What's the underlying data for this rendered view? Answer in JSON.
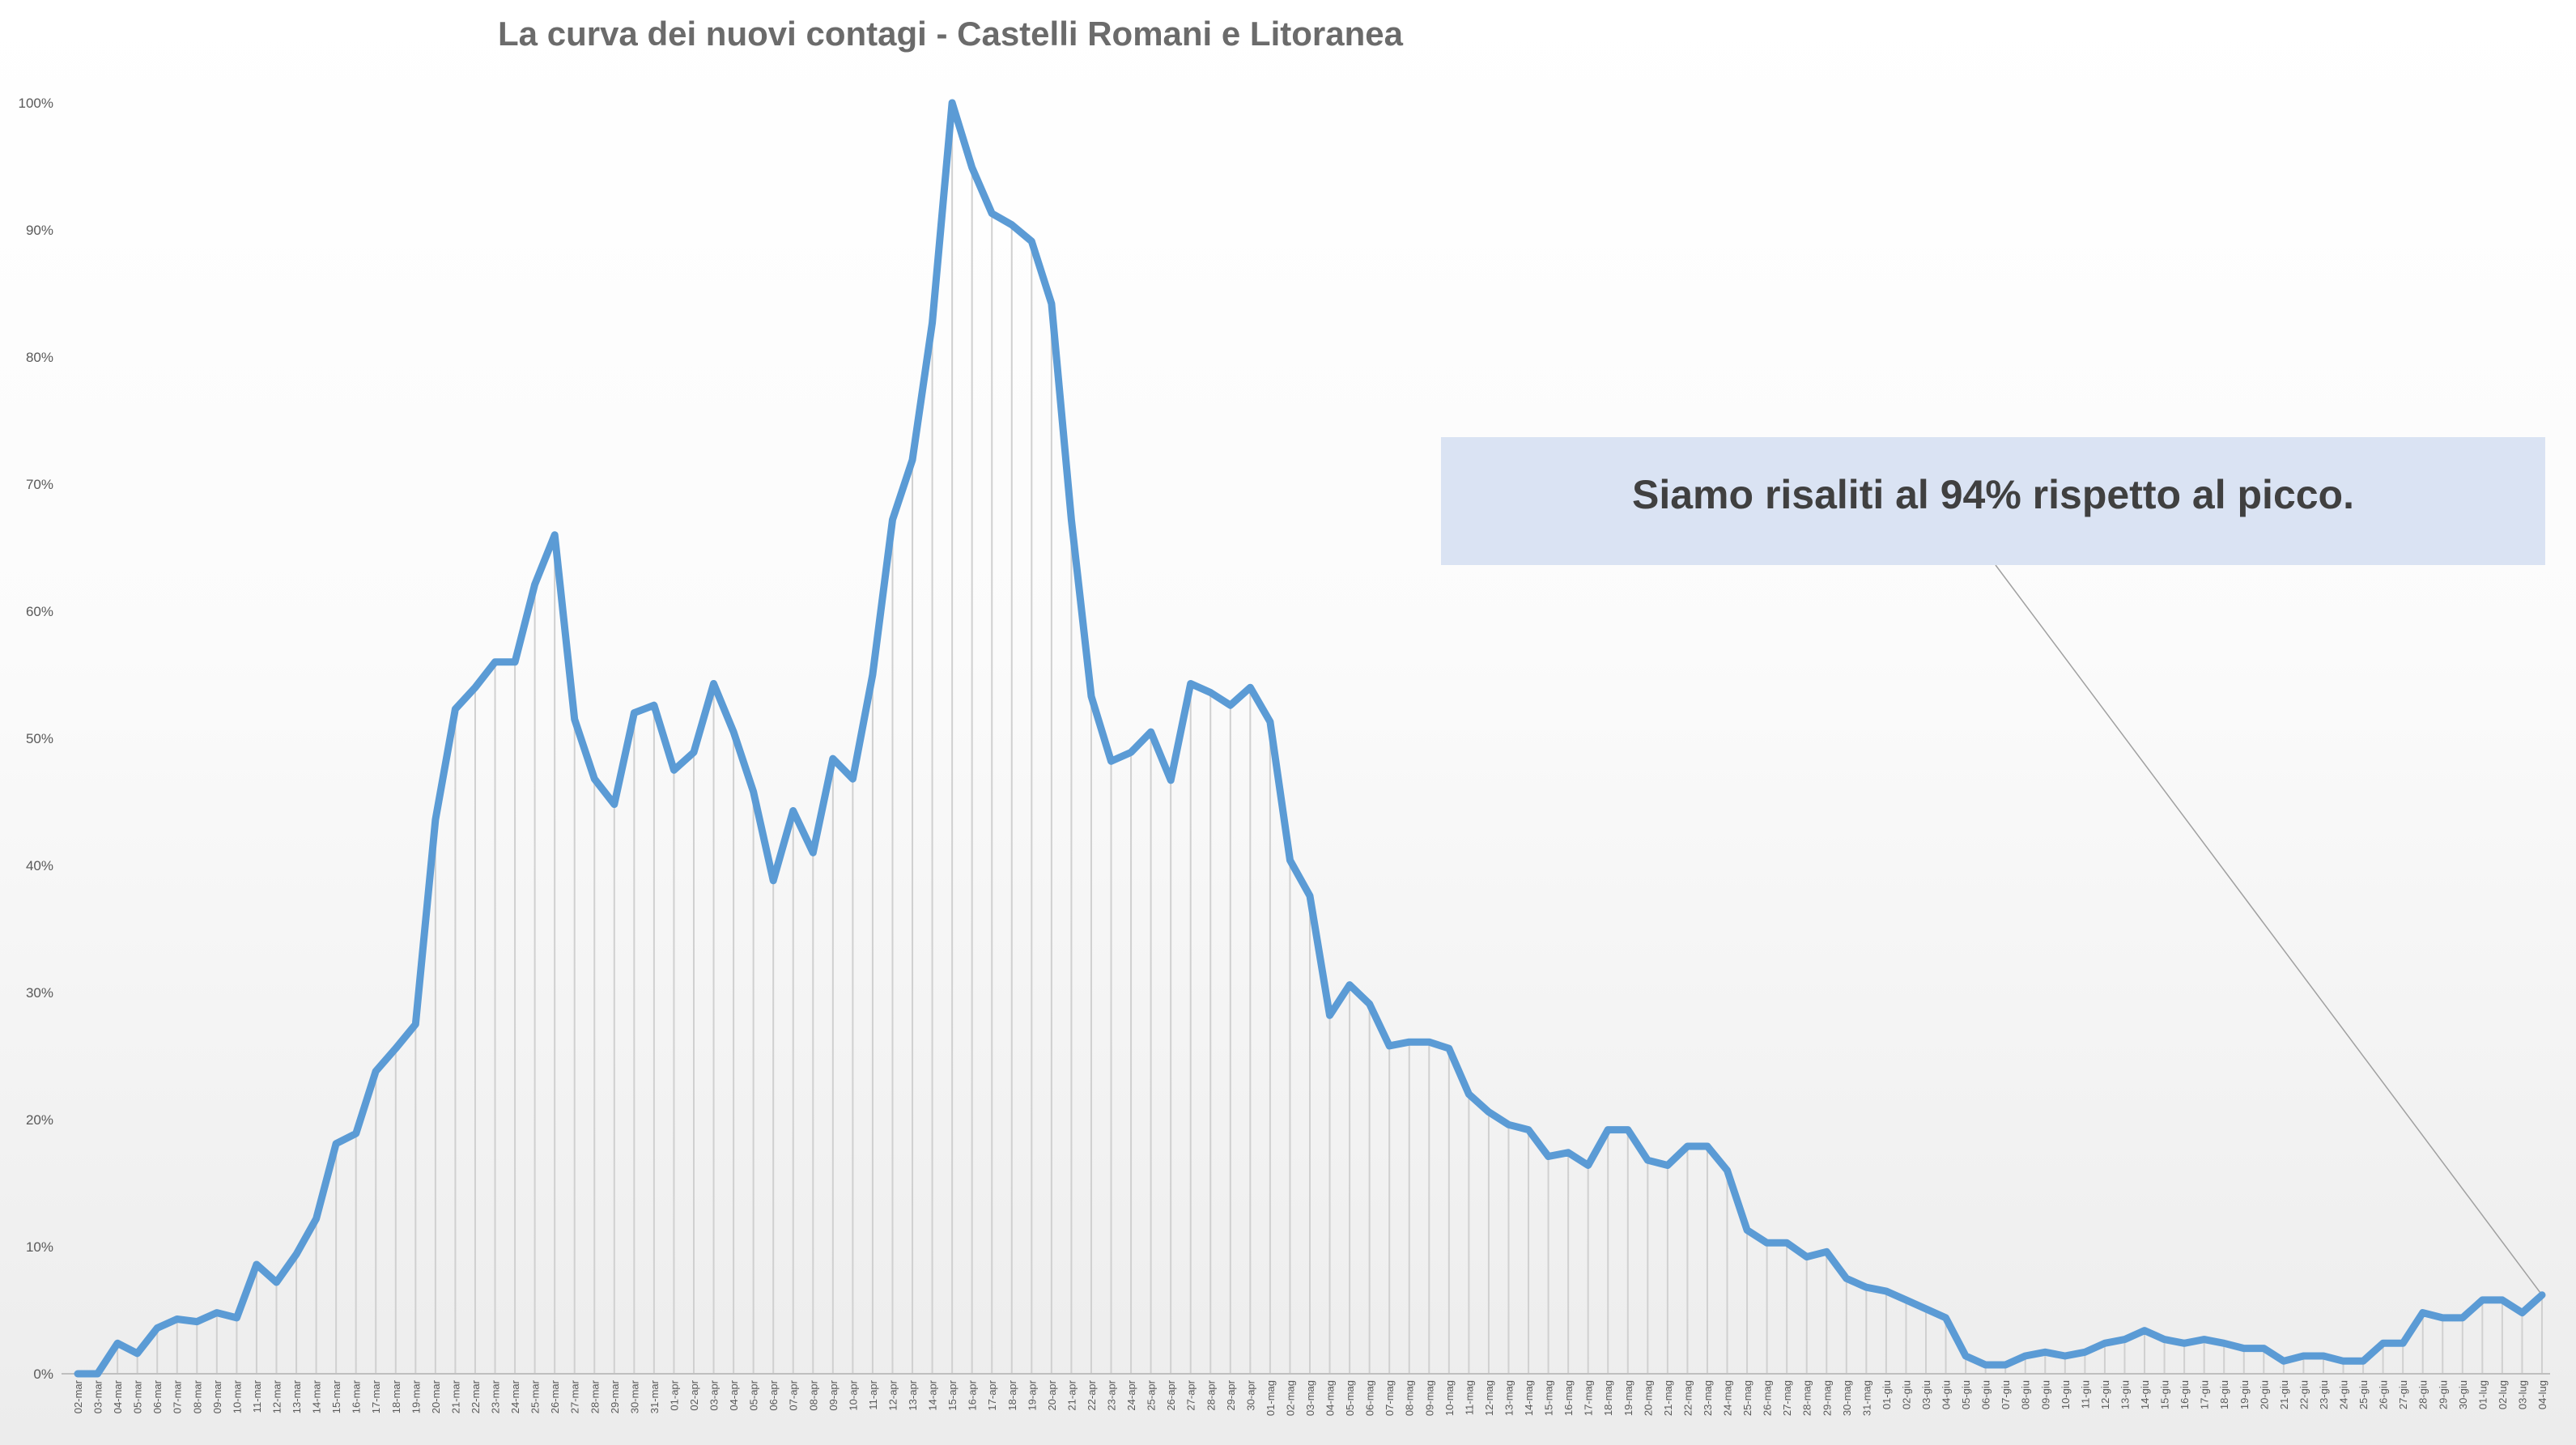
{
  "chart_data": {
    "type": "line",
    "title": "La curva dei nuovi contagi - Castelli Romani e Litoranea",
    "ylim": [
      0,
      100
    ],
    "y_ticks": [
      "0%",
      "10%",
      "20%",
      "30%",
      "40%",
      "50%",
      "60%",
      "70%",
      "80%",
      "90%",
      "100%"
    ],
    "grid": "vertical drop lines per day",
    "categories": [
      "02-mar",
      "03-mar",
      "04-mar",
      "05-mar",
      "06-mar",
      "07-mar",
      "08-mar",
      "09-mar",
      "10-mar",
      "11-mar",
      "12-mar",
      "13-mar",
      "14-mar",
      "15-mar",
      "16-mar",
      "17-mar",
      "18-mar",
      "19-mar",
      "20-mar",
      "21-mar",
      "22-mar",
      "23-mar",
      "24-mar",
      "25-mar",
      "26-mar",
      "27-mar",
      "28-mar",
      "29-mar",
      "30-mar",
      "31-mar",
      "01-apr",
      "02-apr",
      "03-apr",
      "04-apr",
      "05-apr",
      "06-apr",
      "07-apr",
      "08-apr",
      "09-apr",
      "10-apr",
      "11-apr",
      "12-apr",
      "13-apr",
      "14-apr",
      "15-apr",
      "16-apr",
      "17-apr",
      "18-apr",
      "19-apr",
      "20-apr",
      "21-apr",
      "22-apr",
      "23-apr",
      "24-apr",
      "25-apr",
      "26-apr",
      "27-apr",
      "28-apr",
      "29-apr",
      "30-apr",
      "01-mag",
      "02-mag",
      "03-mag",
      "04-mag",
      "05-mag",
      "06-mag",
      "07-mag",
      "08-mag",
      "09-mag",
      "10-mag",
      "11-mag",
      "12-mag",
      "13-mag",
      "14-mag",
      "15-mag",
      "16-mag",
      "17-mag",
      "18-mag",
      "19-mag",
      "20-mag",
      "21-mag",
      "22-mag",
      "23-mag",
      "24-mag",
      "25-mag",
      "26-mag",
      "27-mag",
      "28-mag",
      "29-mag",
      "30-mag",
      "31-mag",
      "01-giu",
      "02-giu",
      "03-giu",
      "04-giu",
      "05-giu",
      "06-giu",
      "07-giu",
      "08-giu",
      "09-giu",
      "10-giu",
      "11-giu",
      "12-giu",
      "13-giu",
      "14-giu",
      "15-giu",
      "16-giu",
      "17-giu",
      "18-giu",
      "19-giu",
      "20-giu",
      "21-giu",
      "22-giu",
      "23-giu",
      "24-giu",
      "25-giu",
      "26-giu",
      "27-giu",
      "28-giu",
      "29-giu",
      "30-giu",
      "01-lug",
      "02-lug",
      "03-lug",
      "04-lug"
    ],
    "values": [
      0,
      0,
      2.4,
      1.6,
      3.6,
      4.3,
      4.1,
      4.8,
      4.4,
      8.6,
      7.2,
      9.4,
      12.2,
      18.1,
      18.9,
      23.8,
      25.6,
      27.5,
      43.6,
      52.3,
      54.0,
      56.0,
      56.0,
      62.1,
      66.0,
      51.5,
      46.8,
      44.8,
      52.0,
      52.6,
      47.5,
      48.9,
      54.3,
      50.5,
      45.8,
      38.8,
      44.3,
      41.0,
      48.4,
      46.8,
      55.0,
      67.2,
      71.9,
      82.7,
      100.0,
      94.9,
      91.3,
      90.4,
      89.1,
      84.2,
      67.2,
      53.3,
      48.2,
      48.9,
      50.5,
      46.7,
      54.3,
      53.6,
      52.6,
      54.0,
      51.3,
      40.4,
      37.6,
      28.2,
      30.6,
      29.1,
      25.8,
      26.1,
      26.1,
      25.6,
      22.0,
      20.6,
      19.6,
      19.2,
      17.1,
      17.4,
      16.4,
      19.2,
      19.2,
      16.8,
      16.4,
      17.9,
      17.9,
      16.0,
      11.3,
      10.3,
      10.3,
      9.2,
      9.6,
      7.5,
      6.8,
      6.5,
      5.8,
      5.1,
      4.4,
      1.4,
      0.7,
      0.7,
      1.4,
      1.7,
      1.4,
      1.7,
      2.4,
      2.7,
      3.4,
      2.7,
      2.4,
      2.7,
      2.4,
      2.0,
      2.0,
      1.0,
      1.4,
      1.4,
      1.0,
      1.0,
      2.4,
      2.4,
      4.8,
      4.4,
      4.4,
      5.8,
      5.8,
      4.8,
      6.2
    ],
    "annotation": "Siamo risaliti al 94% rispetto al picco."
  },
  "colors": {
    "line": "#5b9bd5",
    "callout_bg": "#dae3f3",
    "title": "#6b6b6b",
    "drop_lines": "#d0d0d0",
    "leader": "#a0a0a0"
  }
}
